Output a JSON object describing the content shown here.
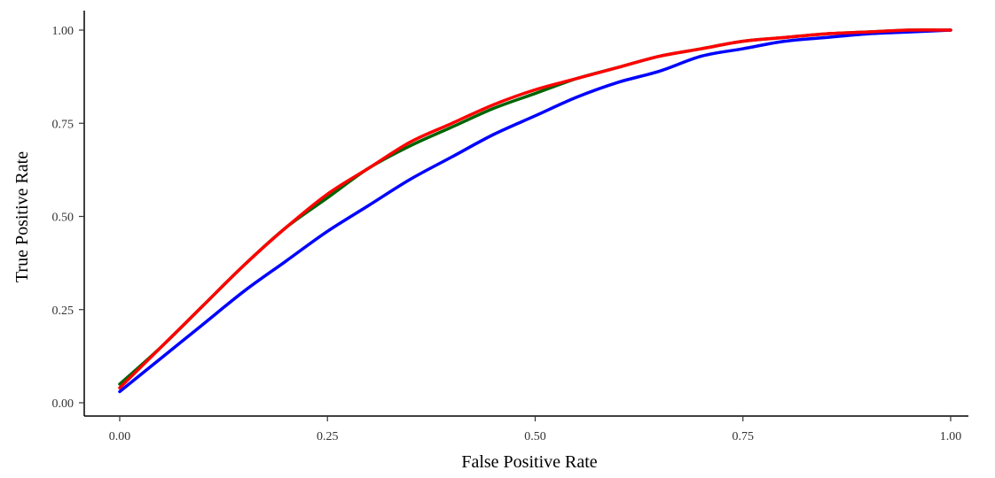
{
  "chart_data": {
    "type": "line",
    "title": "",
    "xlabel": "False Positive Rate",
    "ylabel": "True Positive Rate",
    "xlim": [
      0,
      1
    ],
    "ylim": [
      0,
      1
    ],
    "grid": false,
    "legend": "none",
    "x_ticks": [
      "0.00",
      "0.25",
      "0.50",
      "0.75",
      "1.00"
    ],
    "y_ticks": [
      "0.00",
      "0.25",
      "0.50",
      "0.75",
      "1.00"
    ],
    "x_tick_values": [
      0,
      0.25,
      0.5,
      0.75,
      1
    ],
    "y_tick_values": [
      0,
      0.25,
      0.5,
      0.75,
      1
    ],
    "series": [
      {
        "color": "#006400",
        "x": [
          0,
          0.05,
          0.1,
          0.15,
          0.2,
          0.25,
          0.3,
          0.35,
          0.4,
          0.45,
          0.5,
          0.55,
          0.6,
          0.65,
          0.7,
          0.75,
          0.8,
          0.85,
          0.9,
          0.95,
          1.0
        ],
        "y": [
          0.05,
          0.15,
          0.26,
          0.37,
          0.47,
          0.55,
          0.63,
          0.69,
          0.74,
          0.79,
          0.83,
          0.87,
          0.9,
          0.93,
          0.95,
          0.97,
          0.98,
          0.99,
          0.995,
          1.0,
          1.0
        ]
      },
      {
        "color": "#0000ff",
        "x": [
          0,
          0.05,
          0.1,
          0.15,
          0.2,
          0.25,
          0.3,
          0.35,
          0.4,
          0.45,
          0.5,
          0.55,
          0.6,
          0.65,
          0.7,
          0.75,
          0.8,
          0.85,
          0.9,
          0.95,
          1.0
        ],
        "y": [
          0.03,
          0.12,
          0.21,
          0.3,
          0.38,
          0.46,
          0.53,
          0.6,
          0.66,
          0.72,
          0.77,
          0.82,
          0.86,
          0.89,
          0.93,
          0.95,
          0.97,
          0.98,
          0.99,
          0.995,
          1.0
        ]
      },
      {
        "color": "#ff0000",
        "x": [
          0,
          0.05,
          0.1,
          0.15,
          0.2,
          0.25,
          0.3,
          0.35,
          0.4,
          0.45,
          0.5,
          0.55,
          0.6,
          0.65,
          0.7,
          0.75,
          0.8,
          0.85,
          0.9,
          0.95,
          1.0
        ],
        "y": [
          0.04,
          0.15,
          0.26,
          0.37,
          0.47,
          0.56,
          0.63,
          0.7,
          0.75,
          0.8,
          0.84,
          0.87,
          0.9,
          0.93,
          0.95,
          0.97,
          0.98,
          0.99,
          0.995,
          1.0,
          1.0
        ]
      }
    ]
  }
}
